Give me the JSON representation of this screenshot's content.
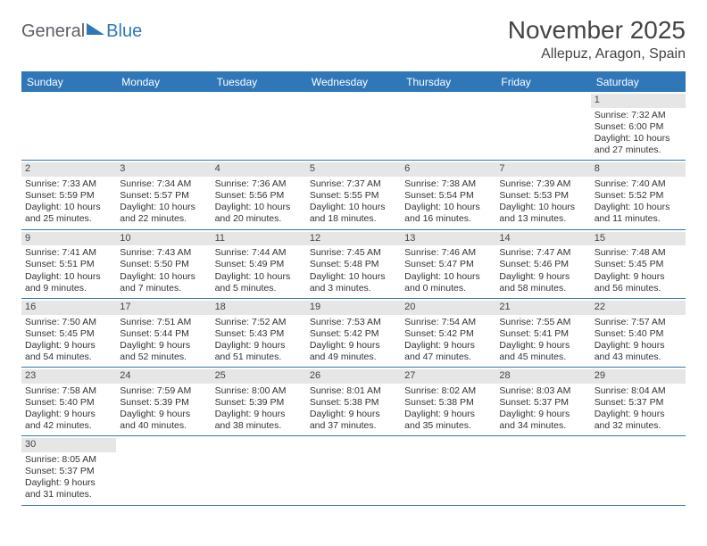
{
  "header": {
    "logo_part1": "General",
    "logo_part2": "Blue",
    "month_title": "November 2025",
    "location": "Allepuz, Aragon, Spain"
  },
  "colors": {
    "accent": "#2f77b8",
    "gray_band": "#e6e6e6",
    "text": "#333333"
  },
  "day_names": [
    "Sunday",
    "Monday",
    "Tuesday",
    "Wednesday",
    "Thursday",
    "Friday",
    "Saturday"
  ],
  "weeks": [
    [
      {
        "blank": true
      },
      {
        "blank": true
      },
      {
        "blank": true
      },
      {
        "blank": true
      },
      {
        "blank": true
      },
      {
        "blank": true
      },
      {
        "d": "1",
        "sr": "7:32 AM",
        "ss": "6:00 PM",
        "dl": "10 hours and 27 minutes."
      }
    ],
    [
      {
        "d": "2",
        "sr": "7:33 AM",
        "ss": "5:59 PM",
        "dl": "10 hours and 25 minutes."
      },
      {
        "d": "3",
        "sr": "7:34 AM",
        "ss": "5:57 PM",
        "dl": "10 hours and 22 minutes."
      },
      {
        "d": "4",
        "sr": "7:36 AM",
        "ss": "5:56 PM",
        "dl": "10 hours and 20 minutes."
      },
      {
        "d": "5",
        "sr": "7:37 AM",
        "ss": "5:55 PM",
        "dl": "10 hours and 18 minutes."
      },
      {
        "d": "6",
        "sr": "7:38 AM",
        "ss": "5:54 PM",
        "dl": "10 hours and 16 minutes."
      },
      {
        "d": "7",
        "sr": "7:39 AM",
        "ss": "5:53 PM",
        "dl": "10 hours and 13 minutes."
      },
      {
        "d": "8",
        "sr": "7:40 AM",
        "ss": "5:52 PM",
        "dl": "10 hours and 11 minutes."
      }
    ],
    [
      {
        "d": "9",
        "sr": "7:41 AM",
        "ss": "5:51 PM",
        "dl": "10 hours and 9 minutes."
      },
      {
        "d": "10",
        "sr": "7:43 AM",
        "ss": "5:50 PM",
        "dl": "10 hours and 7 minutes."
      },
      {
        "d": "11",
        "sr": "7:44 AM",
        "ss": "5:49 PM",
        "dl": "10 hours and 5 minutes."
      },
      {
        "d": "12",
        "sr": "7:45 AM",
        "ss": "5:48 PM",
        "dl": "10 hours and 3 minutes."
      },
      {
        "d": "13",
        "sr": "7:46 AM",
        "ss": "5:47 PM",
        "dl": "10 hours and 0 minutes."
      },
      {
        "d": "14",
        "sr": "7:47 AM",
        "ss": "5:46 PM",
        "dl": "9 hours and 58 minutes."
      },
      {
        "d": "15",
        "sr": "7:48 AM",
        "ss": "5:45 PM",
        "dl": "9 hours and 56 minutes."
      }
    ],
    [
      {
        "d": "16",
        "sr": "7:50 AM",
        "ss": "5:45 PM",
        "dl": "9 hours and 54 minutes."
      },
      {
        "d": "17",
        "sr": "7:51 AM",
        "ss": "5:44 PM",
        "dl": "9 hours and 52 minutes."
      },
      {
        "d": "18",
        "sr": "7:52 AM",
        "ss": "5:43 PM",
        "dl": "9 hours and 51 minutes."
      },
      {
        "d": "19",
        "sr": "7:53 AM",
        "ss": "5:42 PM",
        "dl": "9 hours and 49 minutes."
      },
      {
        "d": "20",
        "sr": "7:54 AM",
        "ss": "5:42 PM",
        "dl": "9 hours and 47 minutes."
      },
      {
        "d": "21",
        "sr": "7:55 AM",
        "ss": "5:41 PM",
        "dl": "9 hours and 45 minutes."
      },
      {
        "d": "22",
        "sr": "7:57 AM",
        "ss": "5:40 PM",
        "dl": "9 hours and 43 minutes."
      }
    ],
    [
      {
        "d": "23",
        "sr": "7:58 AM",
        "ss": "5:40 PM",
        "dl": "9 hours and 42 minutes."
      },
      {
        "d": "24",
        "sr": "7:59 AM",
        "ss": "5:39 PM",
        "dl": "9 hours and 40 minutes."
      },
      {
        "d": "25",
        "sr": "8:00 AM",
        "ss": "5:39 PM",
        "dl": "9 hours and 38 minutes."
      },
      {
        "d": "26",
        "sr": "8:01 AM",
        "ss": "5:38 PM",
        "dl": "9 hours and 37 minutes."
      },
      {
        "d": "27",
        "sr": "8:02 AM",
        "ss": "5:38 PM",
        "dl": "9 hours and 35 minutes."
      },
      {
        "d": "28",
        "sr": "8:03 AM",
        "ss": "5:37 PM",
        "dl": "9 hours and 34 minutes."
      },
      {
        "d": "29",
        "sr": "8:04 AM",
        "ss": "5:37 PM",
        "dl": "9 hours and 32 minutes."
      }
    ],
    [
      {
        "d": "30",
        "sr": "8:05 AM",
        "ss": "5:37 PM",
        "dl": "9 hours and 31 minutes."
      },
      {
        "blank": true
      },
      {
        "blank": true
      },
      {
        "blank": true
      },
      {
        "blank": true
      },
      {
        "blank": true
      },
      {
        "blank": true
      }
    ]
  ],
  "labels": {
    "sunrise": "Sunrise: ",
    "sunset": "Sunset: ",
    "daylight": "Daylight: "
  }
}
